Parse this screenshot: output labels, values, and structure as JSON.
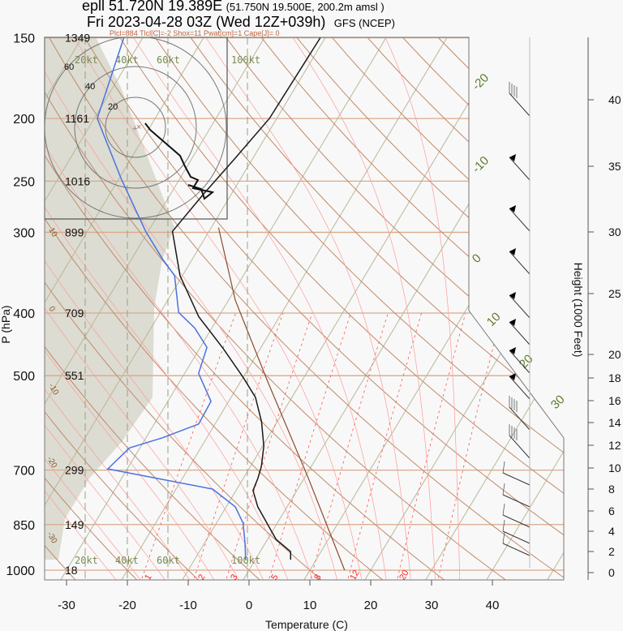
{
  "header": {
    "line1_main": "epll 51.720N 19.389E",
    "line1_sub": "(51.750N 19.500E, 200.2m amsl )",
    "line2_main": "Fri 2023-04-28 03Z (Wed 12Z+039h)",
    "line2_sub": "GFS (NCEP)",
    "indices": "Plcl=884 Tlcl[C]=-2 Shox=11 Pwat[cm]=1 Cape[J]= 0"
  },
  "colors": {
    "temperature": "#1a1a1a",
    "dewpoint": "#4a72e0",
    "parcel": "#8b4a2b",
    "isotherm": "#b8b89a",
    "dry_adiabat": "#c08a6a",
    "moist_adiabat": "#ff9a9a",
    "mixing_ratio": "#ff5050",
    "isobar": "#d9a98a",
    "shading": "#dcdcd2",
    "kt_label": "#7a8a50",
    "isotherm_label": "#5a7a2a"
  },
  "chart_data": {
    "type": "line",
    "title": "",
    "xlabel": "Temperature (C)",
    "ylabel": "P (hPa)",
    "y2label": "Height (1000 Feet)",
    "xlim": [
      -34,
      51
    ],
    "ylim": [
      1035,
      150
    ],
    "yscale": "log",
    "skewed": true,
    "x_ticks": [
      "-30",
      "-20",
      "-10",
      "0",
      "10",
      "20",
      "30",
      "40"
    ],
    "pressure_levels": [
      {
        "p": "150",
        "height": "1349"
      },
      {
        "p": "200",
        "height": "1161"
      },
      {
        "p": "250",
        "height": "1016"
      },
      {
        "p": "300",
        "height": "899"
      },
      {
        "p": "400",
        "height": "709"
      },
      {
        "p": "500",
        "height": "551"
      },
      {
        "p": "700",
        "height": "299"
      },
      {
        "p": "850",
        "height": "149"
      },
      {
        "p": "1000",
        "height": "18"
      }
    ],
    "height_ticks": [
      "0",
      "2",
      "4",
      "6",
      "8",
      "10",
      "12",
      "14",
      "16",
      "18",
      "20",
      "25",
      "30",
      "35",
      "40"
    ],
    "isotherm_labels": [
      "-20",
      "-10",
      "0",
      "10",
      "20",
      "30"
    ],
    "dry_adiabat_labels": [
      "10",
      "0",
      "-10",
      "-20",
      "-30"
    ],
    "mixing_ratio_labels": [
      "1",
      "2",
      "3",
      "5",
      "8",
      "12",
      "20"
    ],
    "kt_labels": [
      "20kt",
      "40kt",
      "60kt",
      "100kt"
    ],
    "hodograph_ring_labels": [
      "20",
      "40",
      "60"
    ],
    "series": [
      {
        "key": "temperature",
        "points": [
          [
            963,
            5.8
          ],
          [
            936,
            5.0
          ],
          [
            896,
            1.4
          ],
          [
            798,
            -4.8
          ],
          [
            753,
            -7.2
          ],
          [
            721,
            -7.6
          ],
          [
            691,
            -8.2
          ],
          [
            643,
            -9.8
          ],
          [
            589,
            -12.6
          ],
          [
            540,
            -16.0
          ],
          [
            503,
            -20.0
          ],
          [
            454,
            -26.1
          ],
          [
            405,
            -33.3
          ],
          [
            350,
            -40.4
          ],
          [
            299,
            -46.0
          ],
          [
            262,
            -44.6
          ],
          [
            230,
            -42.9
          ],
          [
            200,
            -41.2
          ],
          [
            150,
            -40.8
          ]
        ]
      },
      {
        "key": "dewpoint",
        "points": [
          [
            963,
            -1.6
          ],
          [
            909,
            -3.3
          ],
          [
            846,
            -5.6
          ],
          [
            798,
            -8.5
          ],
          [
            749,
            -14.0
          ],
          [
            697,
            -33.2
          ],
          [
            647,
            -31.7
          ],
          [
            624,
            -27.3
          ],
          [
            594,
            -22.7
          ],
          [
            548,
            -22.9
          ],
          [
            496,
            -27.7
          ],
          [
            452,
            -28.9
          ],
          [
            422,
            -32.8
          ],
          [
            399,
            -37.0
          ],
          [
            350,
            -41.3
          ],
          [
            330,
            -44.9
          ],
          [
            299,
            -50.4
          ],
          [
            278,
            -54.0
          ],
          [
            248,
            -59.6
          ],
          [
            200,
            -69.5
          ],
          [
            150,
            -73.1
          ]
        ]
      },
      {
        "key": "parcel",
        "points": [
          [
            1000,
            15.7
          ],
          [
            721,
            0.7
          ],
          [
            510,
            -15.6
          ],
          [
            382,
            -28.9
          ],
          [
            295,
            -38.8
          ]
        ]
      }
    ]
  }
}
